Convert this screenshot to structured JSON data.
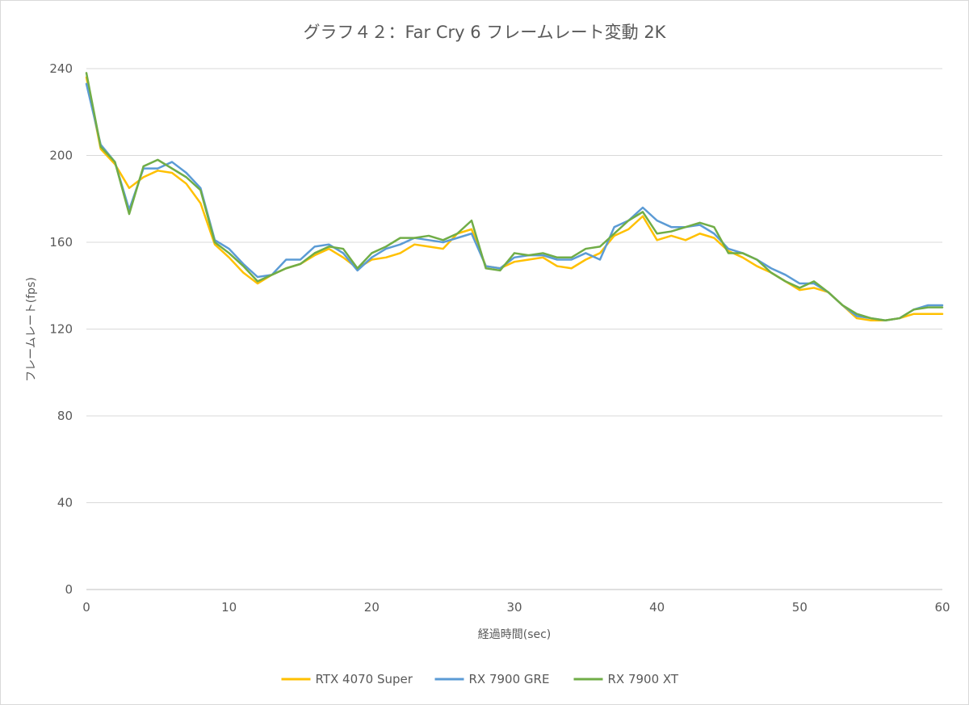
{
  "chart_data": {
    "type": "line",
    "title": "グラフ４２：Far Cry 6 フレームレート変動 2K",
    "xlabel": "経過時間(sec)",
    "ylabel": "フレームレート(fps)",
    "xlim": [
      0,
      60
    ],
    "ylim": [
      0,
      240
    ],
    "x_ticks": [
      "0",
      "10",
      "20",
      "30",
      "40",
      "50",
      "60"
    ],
    "y_ticks": [
      "0",
      "40",
      "80",
      "120",
      "160",
      "200",
      "240"
    ],
    "grid": true,
    "legend_position": "bottom",
    "x": [
      0,
      1,
      2,
      3,
      4,
      5,
      6,
      7,
      8,
      9,
      10,
      11,
      12,
      13,
      14,
      15,
      16,
      17,
      18,
      19,
      20,
      21,
      22,
      23,
      24,
      25,
      26,
      27,
      28,
      29,
      30,
      31,
      32,
      33,
      34,
      35,
      36,
      37,
      38,
      39,
      40,
      41,
      42,
      43,
      44,
      45,
      46,
      47,
      48,
      49,
      50,
      51,
      52,
      53,
      54,
      55,
      56,
      57,
      58,
      59,
      60
    ],
    "series": [
      {
        "name": "RTX 4070 Super",
        "color": "#ffc000",
        "values": [
          236,
          203,
          196,
          185,
          190,
          193,
          192,
          187,
          178,
          159,
          153,
          146,
          141,
          145,
          148,
          150,
          154,
          157,
          153,
          148,
          152,
          153,
          155,
          159,
          158,
          157,
          164,
          166,
          149,
          148,
          151,
          152,
          153,
          149,
          148,
          152,
          155,
          163,
          166,
          172,
          161,
          163,
          161,
          164,
          162,
          156,
          153,
          149,
          146,
          142,
          138,
          139,
          137,
          131,
          125,
          124,
          124,
          125,
          127,
          127,
          127
        ]
      },
      {
        "name": "RX 7900 GRE",
        "color": "#5b9bd5",
        "values": [
          233,
          205,
          197,
          175,
          194,
          194,
          197,
          192,
          185,
          161,
          157,
          150,
          144,
          145,
          152,
          152,
          158,
          159,
          155,
          147,
          153,
          157,
          159,
          162,
          161,
          160,
          162,
          164,
          149,
          148,
          153,
          154,
          154,
          152,
          152,
          155,
          152,
          167,
          170,
          176,
          170,
          167,
          167,
          168,
          164,
          157,
          155,
          152,
          148,
          145,
          141,
          141,
          137,
          131,
          126,
          125,
          124,
          125,
          129,
          131,
          131
        ]
      },
      {
        "name": "RX 7900 XT",
        "color": "#70ad47",
        "values": [
          238,
          204,
          197,
          173,
          195,
          198,
          194,
          190,
          184,
          160,
          155,
          149,
          142,
          145,
          148,
          150,
          155,
          158,
          157,
          148,
          155,
          158,
          162,
          162,
          163,
          161,
          164,
          170,
          148,
          147,
          155,
          154,
          155,
          153,
          153,
          157,
          158,
          164,
          170,
          174,
          164,
          165,
          167,
          169,
          167,
          155,
          155,
          152,
          146,
          142,
          139,
          142,
          137,
          131,
          127,
          125,
          124,
          125,
          129,
          130,
          130
        ]
      }
    ]
  }
}
